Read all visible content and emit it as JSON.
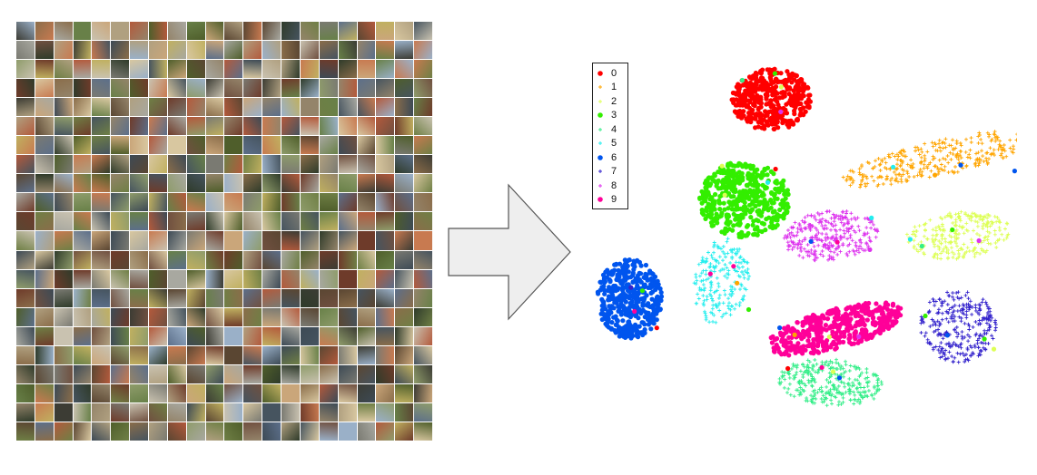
{
  "figure": {
    "mosaic": {
      "rows": 22,
      "cols": 22,
      "palette": [
        "#6e3b2a",
        "#8a6d4a",
        "#4f5e2b",
        "#6f7f45",
        "#c0b060",
        "#9ab0c8",
        "#5c6f8a",
        "#3d4a55",
        "#a8a8a0",
        "#7a7a72",
        "#caa67a",
        "#b35a3c",
        "#2f3b2a",
        "#c9c2b0",
        "#5a4632",
        "#8f9c6b",
        "#d8c7a0",
        "#46545f",
        "#b0a080",
        "#705040",
        "#94846a",
        "#3c3c34",
        "#c87a50",
        "#688048"
      ]
    },
    "arrow": {
      "fill": "#eeeeee",
      "stroke": "#555555"
    }
  },
  "chart_data": {
    "type": "scatter",
    "title": "",
    "xlabel": "",
    "ylabel": "",
    "legend": {
      "placement": "top-left",
      "entries": [
        {
          "label": "0",
          "color": "#ff0000",
          "marker": "circle"
        },
        {
          "label": "1",
          "color": "#ffa500",
          "marker": "plus"
        },
        {
          "label": "2",
          "color": "#ddff55",
          "marker": "plus"
        },
        {
          "label": "3",
          "color": "#33ee00",
          "marker": "circle"
        },
        {
          "label": "4",
          "color": "#33ee88",
          "marker": "plus"
        },
        {
          "label": "5",
          "color": "#22eeee",
          "marker": "plus"
        },
        {
          "label": "6",
          "color": "#0055ee",
          "marker": "circle"
        },
        {
          "label": "7",
          "color": "#3322cc",
          "marker": "plus"
        },
        {
          "label": "8",
          "color": "#dd33ee",
          "marker": "plus"
        },
        {
          "label": "9",
          "color": "#ff0099",
          "marker": "circle"
        }
      ]
    },
    "series": [
      {
        "cluster": {
          "cx": 210,
          "cy": 50,
          "rx": 44,
          "ry": 34,
          "angle": 0,
          "n": 420
        }
      },
      {
        "cluster": {
          "cx": 395,
          "cy": 115,
          "rx": 112,
          "ry": 20,
          "angle": -13,
          "n": 330
        }
      },
      {
        "cluster": {
          "cx": 415,
          "cy": 200,
          "rx": 58,
          "ry": 26,
          "angle": -6,
          "n": 260
        }
      },
      {
        "cluster": {
          "cx": 180,
          "cy": 160,
          "rx": 50,
          "ry": 42,
          "angle": 0,
          "n": 460
        }
      },
      {
        "cluster": {
          "cx": 275,
          "cy": 362,
          "rx": 58,
          "ry": 26,
          "angle": 5,
          "n": 300
        }
      },
      {
        "cluster": {
          "cx": 155,
          "cy": 250,
          "rx": 30,
          "ry": 48,
          "angle": 10,
          "n": 200
        }
      },
      {
        "cluster": {
          "cx": 53,
          "cy": 270,
          "rx": 36,
          "ry": 44,
          "angle": 0,
          "n": 420
        }
      },
      {
        "cluster": {
          "cx": 415,
          "cy": 300,
          "rx": 42,
          "ry": 40,
          "angle": 0,
          "n": 280
        }
      },
      {
        "cluster": {
          "cx": 275,
          "cy": 200,
          "rx": 52,
          "ry": 28,
          "angle": -6,
          "n": 300
        }
      },
      {
        "cluster": {
          "cx": 280,
          "cy": 303,
          "rx": 78,
          "ry": 22,
          "angle": -15,
          "n": 440
        }
      }
    ]
  }
}
